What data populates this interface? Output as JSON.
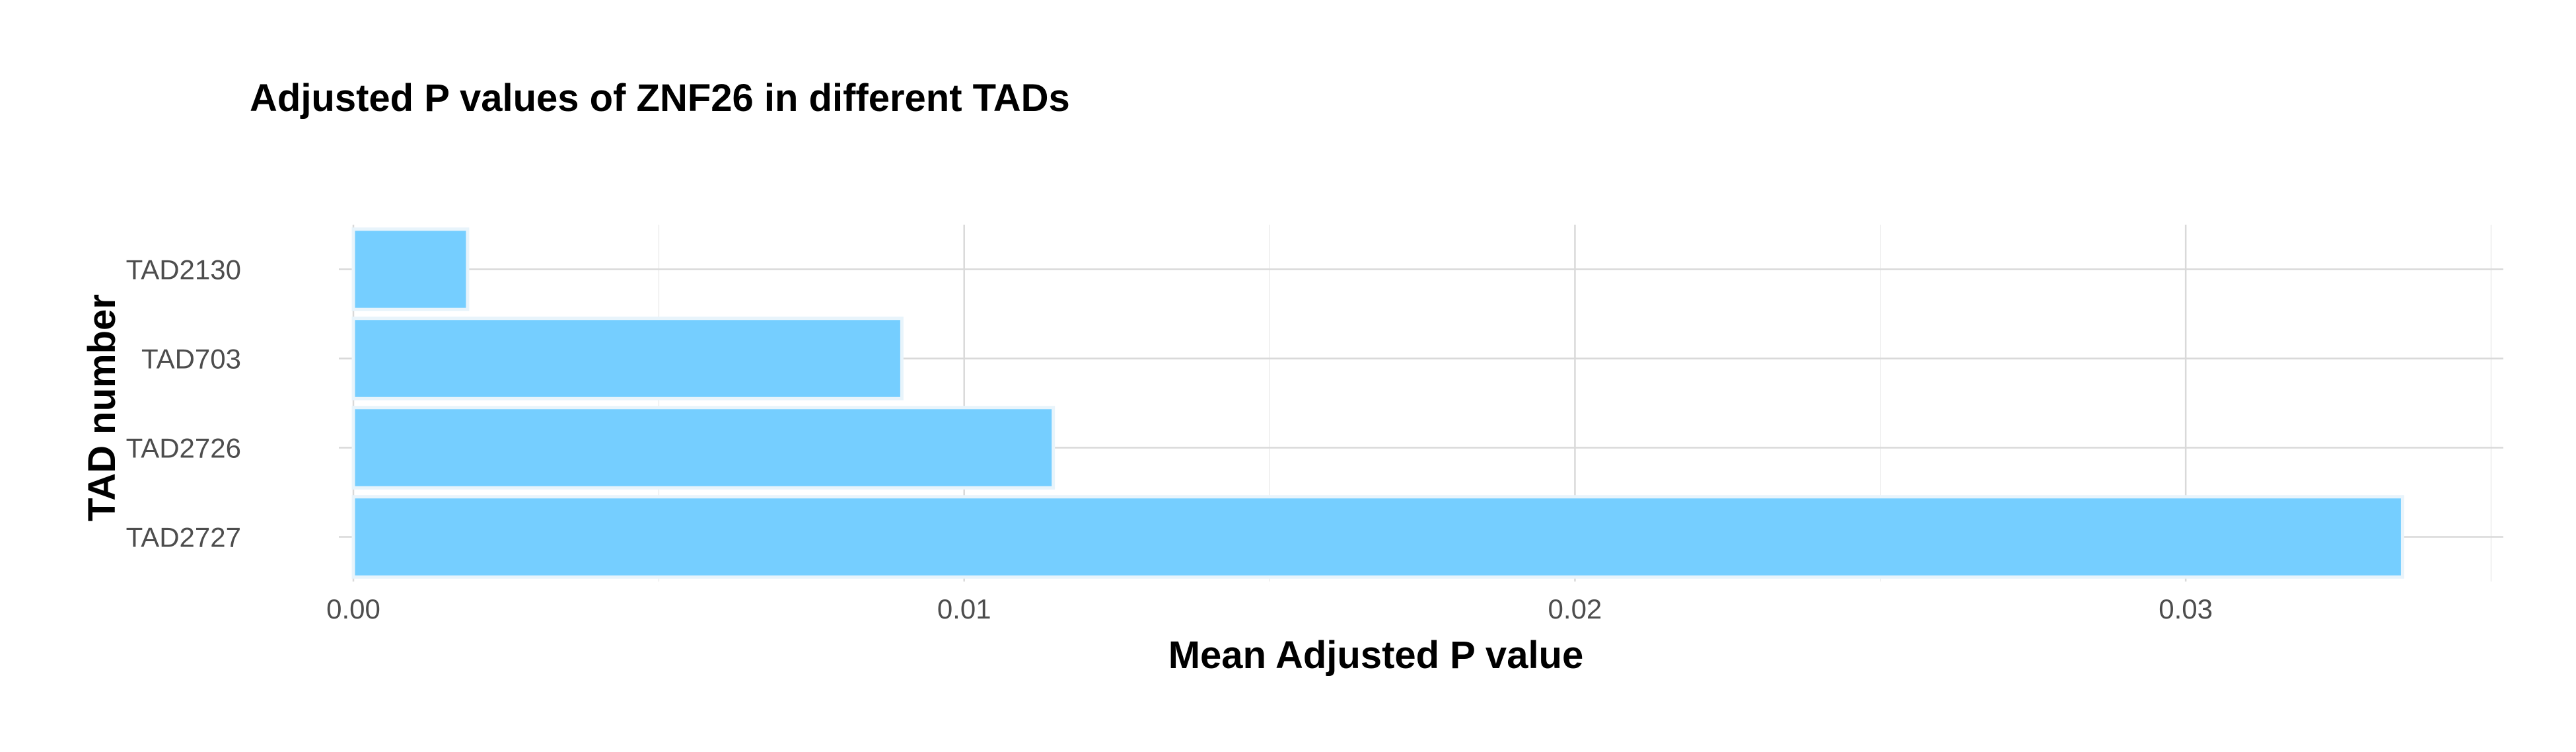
{
  "chart_data": {
    "type": "bar",
    "orientation": "horizontal",
    "title": "Adjusted P values of ZNF26 in different TADs",
    "xlabel": "Mean Adjusted P value",
    "ylabel": "TAD number",
    "categories": [
      "TAD2130",
      "TAD703",
      "TAD2726",
      "TAD2727"
    ],
    "values": [
      0.00187,
      0.00898,
      0.01146,
      0.03355
    ],
    "xlim": [
      0,
      0.0352
    ],
    "x_ticks": [
      0,
      0.01,
      0.02,
      0.03
    ],
    "x_tick_labels": [
      "0.00",
      "0.01",
      "0.02",
      "0.03"
    ],
    "bar_color": "#75ceff",
    "grid": true,
    "legend": "none"
  }
}
